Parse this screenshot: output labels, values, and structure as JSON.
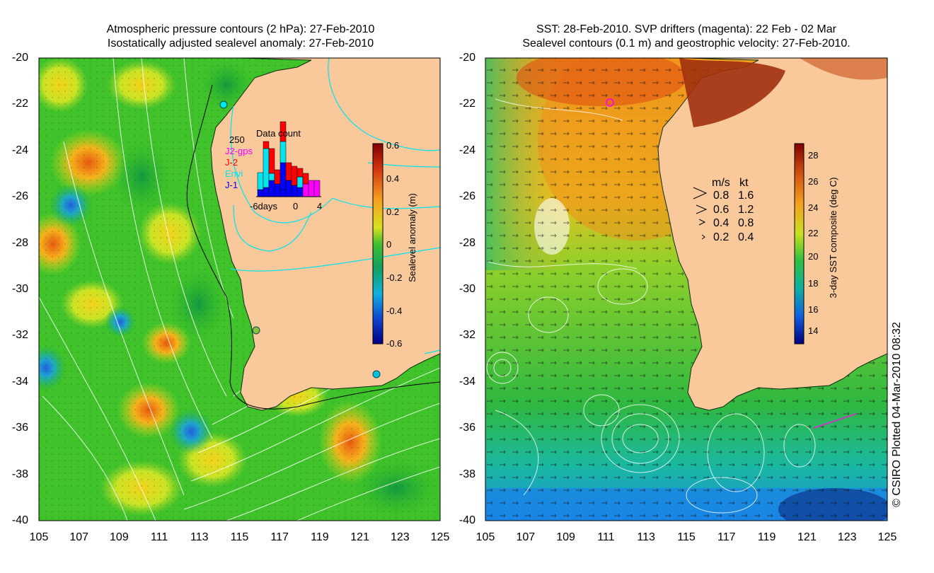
{
  "left_panel": {
    "title_line1": "Atmospheric pressure contours (2 hPa): 27-Feb-2010",
    "title_line2": "Isostatically adjusted sealevel anomaly: 27-Feb-2010",
    "colorbar": {
      "label": "Sealevel anomaly (m)",
      "ticks": [
        "0.6",
        "0.4",
        "0.2",
        "0",
        "-0.2",
        "-0.4",
        "-0.6"
      ]
    },
    "inset": {
      "top_value": "250",
      "title": "Data count",
      "legend": [
        {
          "label": "J2-gps",
          "color": "#ff00ff"
        },
        {
          "label": "J-2",
          "color": "#ff0000"
        },
        {
          "label": "Envi",
          "color": "#00e5ee"
        },
        {
          "label": "J-1",
          "color": "#0000ff"
        }
      ],
      "x_ticks": [
        "-6days",
        "0",
        "4"
      ]
    }
  },
  "right_panel": {
    "title_line1": "SST: 28-Feb-2010. SVP drifters (magenta): 22 Feb - 02 Mar",
    "title_line2": "Sealevel contours (0.1 m) and geostrophic velocity: 27-Feb-2010.",
    "colorbar": {
      "label": "3-day SST composite (deg C)",
      "ticks": [
        "28",
        "26",
        "24",
        "22",
        "20",
        "18",
        "16",
        "14"
      ]
    },
    "speed_legend": {
      "header_ms": "m/s",
      "header_kt": "kt",
      "rows": [
        {
          "ms": "0.8",
          "kt": "1.6"
        },
        {
          "ms": "0.6",
          "kt": "1.2"
        },
        {
          "ms": "0.4",
          "kt": "0.8"
        },
        {
          "ms": "0.2",
          "kt": "0.4"
        }
      ]
    }
  },
  "axes": {
    "y_ticks": [
      "-20",
      "-22",
      "-24",
      "-26",
      "-28",
      "-30",
      "-32",
      "-34",
      "-36",
      "-38",
      "-40"
    ],
    "x_ticks": [
      "105",
      "107",
      "109",
      "111",
      "113",
      "115",
      "117",
      "119",
      "121",
      "123",
      "125"
    ]
  },
  "credit": "© CSIRO Plotted 04-Mar-2010 08:32",
  "colors": {
    "land": "#f9c89b",
    "sla_green": "#3fc22a",
    "sst_orange": "#f39a1c",
    "contour": "#ffffff",
    "coast": "#00e5ee"
  }
}
